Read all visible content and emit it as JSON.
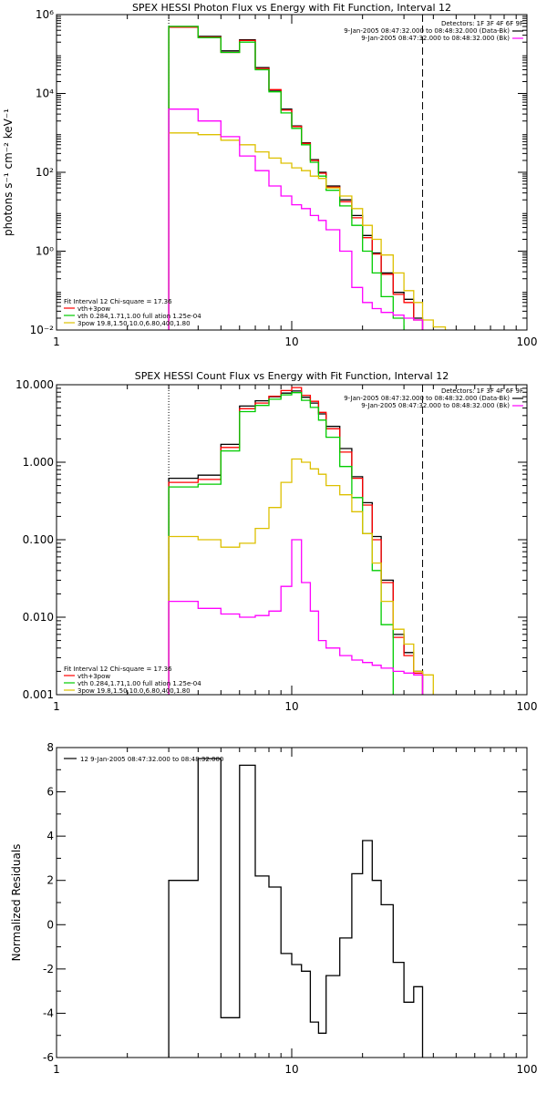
{
  "chart_data": [
    {
      "type": "line",
      "style": "step",
      "title": "SPEX HESSI Photon Flux vs Energy with Fit Function, Interval 12",
      "xlabel": "",
      "ylabel": "photons s⁻¹ cm⁻² keV⁻¹",
      "xscale": "log",
      "yscale": "log",
      "xlim": [
        1,
        100
      ],
      "ylim": [
        0.01,
        1000000
      ],
      "x_ticks": [
        {
          "v": 1,
          "label": "1"
        },
        {
          "v": 10,
          "label": "10"
        },
        {
          "v": 100,
          "label": "100"
        }
      ],
      "y_ticks": [
        {
          "v": 0.01,
          "label": "10⁻²"
        },
        {
          "v": 1,
          "label": "10⁰"
        },
        {
          "v": 100,
          "label": "10²"
        },
        {
          "v": 10000,
          "label": "10⁴"
        },
        {
          "v": 1000000,
          "label": "10⁶"
        }
      ],
      "info_lines": [
        "Detectors: 1F 3F 4F 6F 9F",
        "9-Jan-2005 08:47:32.000 to 08:48:32.000 (Data-Bk)",
        "9-Jan-2005 08:47:32.000 to 08:48:32.000 (Bk)"
      ],
      "info_colors": [
        "",
        "#000000",
        "#ff00ff"
      ],
      "legend_lines": [
        "Fit Interval 12   Chi-square = 17.36",
        "vth+3pow",
        "vth 0.284,1.71,1.00  full ation 1.25e-04",
        "3pow 19.8,1.50,10.0,6.80,400,1.80"
      ],
      "legend_colors": [
        "",
        "#ff0000",
        "#00cc00",
        "#ddc000"
      ],
      "vlines": [
        {
          "x": 3,
          "style": "dotted"
        },
        {
          "x": 36,
          "style": "dashed"
        }
      ],
      "bin_edges": [
        3,
        4,
        5,
        6,
        7,
        8,
        9,
        10,
        11,
        12,
        13,
        14,
        16,
        18,
        20,
        22,
        24,
        27,
        30,
        33,
        36,
        40,
        45
      ],
      "series": [
        {
          "name": "Data-Bk",
          "color": "#000000",
          "values": [
            500000,
            280000,
            120000,
            230000,
            45000,
            12000,
            4000,
            1500,
            560,
            210,
            100,
            45,
            20,
            8,
            2.5,
            0.9,
            0.28,
            0.09,
            0.06,
            0.02,
            null,
            null
          ]
        },
        {
          "name": "vth+3pow",
          "color": "#ff0000",
          "values": [
            480000,
            270000,
            110000,
            220000,
            43000,
            12500,
            3800,
            1450,
            540,
            200,
            95,
            42,
            18,
            7,
            2.2,
            0.85,
            0.26,
            0.08,
            0.05,
            0.018,
            null,
            null
          ]
        },
        {
          "name": "vth",
          "color": "#00cc00",
          "values": [
            500000,
            260000,
            110000,
            200000,
            40000,
            11000,
            3200,
            1300,
            500,
            180,
            80,
            35,
            14,
            4.5,
            1.0,
            0.28,
            0.07,
            0.02,
            0.005,
            null,
            null,
            null
          ]
        },
        {
          "name": "3pow",
          "color": "#ddc000",
          "values": [
            1000,
            900,
            650,
            500,
            330,
            230,
            170,
            130,
            110,
            80,
            70,
            40,
            25,
            12,
            4.5,
            2.0,
            0.8,
            0.28,
            0.1,
            0.05,
            0.018,
            0.012
          ]
        },
        {
          "name": "Bk",
          "color": "#ff00ff",
          "values": [
            4000,
            2000,
            800,
            260,
            110,
            45,
            25,
            15,
            12,
            8,
            6,
            3.5,
            1.0,
            0.12,
            0.05,
            0.035,
            0.028,
            0.024,
            0.02,
            0.018,
            null,
            null
          ]
        }
      ]
    },
    {
      "type": "line",
      "style": "step",
      "title": "SPEX HESSI Count Flux vs Energy with Fit Function, Interval 12",
      "xlabel": "",
      "ylabel": "",
      "xscale": "log",
      "yscale": "log",
      "xlim": [
        1,
        100
      ],
      "ylim": [
        0.001,
        10
      ],
      "x_ticks": [
        {
          "v": 1,
          "label": "1"
        },
        {
          "v": 10,
          "label": "10"
        },
        {
          "v": 100,
          "label": "100"
        }
      ],
      "y_ticks": [
        {
          "v": 0.001,
          "label": "0.001"
        },
        {
          "v": 0.01,
          "label": "0.010"
        },
        {
          "v": 0.1,
          "label": "0.100"
        },
        {
          "v": 1,
          "label": "1.000"
        },
        {
          "v": 10,
          "label": "10.000"
        }
      ],
      "info_lines": [
        "Detectors: 1F 3F 4F 6F 9F",
        "9-Jan-2005 08:47:32.000 to 08:48:32.000 (Data-Bk)",
        "9-Jan-2005 08:47:32.000 to 08:48:32.000 (Bk)"
      ],
      "info_colors": [
        "",
        "#000000",
        "#ff00ff"
      ],
      "legend_lines": [
        "Fit Interval 12   Chi-square = 17.36",
        "vth+3pow",
        "vth 0.284,1.71,1.00  full ation 1.25e-04",
        "3pow 19.8,1.50,10.0,6.80,400,1.80"
      ],
      "legend_colors": [
        "",
        "#ff0000",
        "#00cc00",
        "#ddc000"
      ],
      "vlines": [
        {
          "x": 3,
          "style": "dotted"
        },
        {
          "x": 36,
          "style": "dashed"
        }
      ],
      "bin_edges": [
        3,
        4,
        5,
        6,
        7,
        8,
        9,
        10,
        11,
        12,
        13,
        14,
        16,
        18,
        20,
        22,
        24,
        27,
        30,
        33,
        36,
        40,
        45
      ],
      "series": [
        {
          "name": "Data-Bk",
          "color": "#000000",
          "values": [
            0.62,
            0.68,
            1.7,
            5.3,
            6.2,
            7.0,
            7.8,
            8.3,
            6.9,
            5.8,
            4.2,
            2.9,
            1.5,
            0.65,
            0.3,
            0.11,
            0.03,
            0.006,
            0.0035,
            0.002,
            null,
            null
          ]
        },
        {
          "name": "vth+3pow",
          "color": "#ff0000",
          "values": [
            0.55,
            0.6,
            1.55,
            4.9,
            5.8,
            7.1,
            8.4,
            9.2,
            7.3,
            6.1,
            4.4,
            2.7,
            1.35,
            0.62,
            0.28,
            0.1,
            0.028,
            0.0055,
            0.0032,
            0.0019,
            null,
            null
          ]
        },
        {
          "name": "vth",
          "color": "#00cc00",
          "values": [
            0.48,
            0.52,
            1.4,
            4.5,
            5.4,
            6.5,
            7.4,
            7.9,
            6.3,
            5.1,
            3.5,
            2.1,
            0.88,
            0.35,
            0.12,
            0.04,
            0.008,
            0.0008,
            null,
            null,
            null,
            null
          ]
        },
        {
          "name": "3pow",
          "color": "#ddc000",
          "values": [
            0.11,
            0.1,
            0.08,
            0.09,
            0.14,
            0.26,
            0.55,
            1.1,
            1.0,
            0.82,
            0.7,
            0.5,
            0.38,
            0.23,
            0.12,
            0.05,
            0.016,
            0.007,
            0.0045,
            0.002,
            0.0018,
            0.0009
          ]
        },
        {
          "name": "Bk",
          "color": "#ff00ff",
          "values": [
            0.016,
            0.013,
            0.011,
            0.01,
            0.0105,
            0.012,
            0.025,
            0.1,
            0.028,
            0.012,
            0.005,
            0.004,
            0.0032,
            0.0028,
            0.0026,
            0.0024,
            0.0022,
            0.002,
            0.0019,
            0.0018,
            null,
            null
          ]
        }
      ]
    },
    {
      "type": "line",
      "style": "step",
      "title": "",
      "xlabel": "",
      "ylabel": "Normalized Residuals",
      "xscale": "log",
      "yscale": "linear",
      "xlim": [
        1,
        100
      ],
      "ylim": [
        -6,
        8
      ],
      "x_ticks": [
        {
          "v": 1,
          "label": "1"
        },
        {
          "v": 10,
          "label": "10"
        },
        {
          "v": 100,
          "label": "100"
        }
      ],
      "y_ticks": [
        {
          "v": -6,
          "label": "-6"
        },
        {
          "v": -4,
          "label": "-4"
        },
        {
          "v": -2,
          "label": "-2"
        },
        {
          "v": 0,
          "label": "0"
        },
        {
          "v": 2,
          "label": "2"
        },
        {
          "v": 4,
          "label": "4"
        },
        {
          "v": 6,
          "label": "6"
        },
        {
          "v": 8,
          "label": "8"
        }
      ],
      "legend_lines": [
        "12  9-Jan-2005 08:47:32.000 to 08:48:32.000"
      ],
      "legend_colors": [
        "#000000"
      ],
      "bin_edges": [
        3,
        4,
        5,
        6,
        7,
        8,
        9,
        10,
        11,
        12,
        13,
        14,
        16,
        18,
        20,
        22,
        24,
        27,
        30,
        33,
        36
      ],
      "series": [
        {
          "name": "",
          "color": "#000000",
          "values": [
            2.0,
            7.5,
            -4.2,
            7.2,
            2.2,
            1.7,
            -1.3,
            -1.8,
            -2.1,
            -4.4,
            -4.9,
            -2.3,
            -0.6,
            2.3,
            3.8,
            2.0,
            0.9,
            -1.7,
            -3.5,
            -2.8
          ]
        }
      ]
    }
  ]
}
